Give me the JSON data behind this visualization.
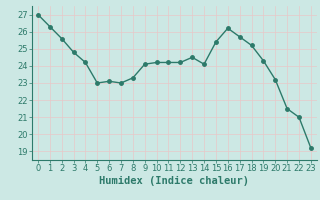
{
  "x": [
    0,
    1,
    2,
    3,
    4,
    5,
    6,
    7,
    8,
    9,
    10,
    11,
    12,
    13,
    14,
    15,
    16,
    17,
    18,
    19,
    20,
    21,
    22,
    23
  ],
  "y": [
    27.0,
    26.3,
    25.6,
    24.8,
    24.2,
    23.0,
    23.1,
    23.0,
    23.3,
    24.1,
    24.2,
    24.2,
    24.2,
    24.5,
    24.1,
    25.4,
    26.2,
    25.7,
    25.2,
    24.3,
    23.2,
    21.5,
    21.0,
    19.2
  ],
  "line_color": "#2d7a6a",
  "marker": "o",
  "markersize": 2.5,
  "linewidth": 1.0,
  "bg_plot": "#cce8e4",
  "bg_fig": "#cce8e4",
  "grid_color_h": "#e8c8c8",
  "grid_color_v": "#e8c8c8",
  "xlabel": "Humidex (Indice chaleur)",
  "xlabel_fontsize": 7.5,
  "xlim": [
    -0.5,
    23.5
  ],
  "ylim": [
    18.5,
    27.5
  ],
  "yticks": [
    19,
    20,
    21,
    22,
    23,
    24,
    25,
    26,
    27
  ],
  "xticks": [
    0,
    1,
    2,
    3,
    4,
    5,
    6,
    7,
    8,
    9,
    10,
    11,
    12,
    13,
    14,
    15,
    16,
    17,
    18,
    19,
    20,
    21,
    22,
    23
  ],
  "tick_fontsize": 6,
  "tick_color": "#2d7a6a",
  "spine_color": "#2d7a6a"
}
